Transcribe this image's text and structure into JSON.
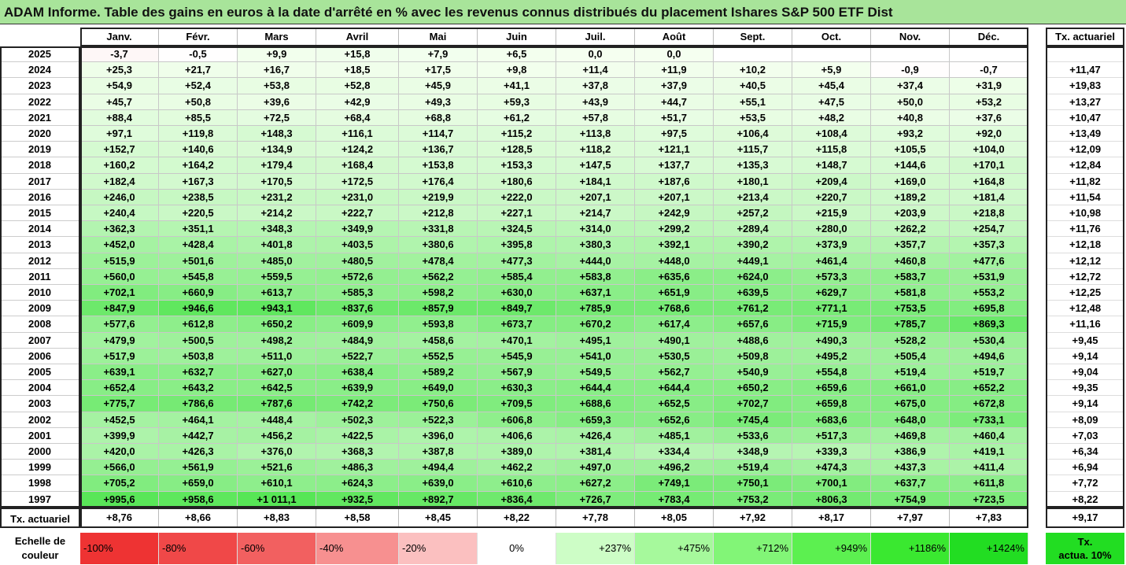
{
  "title": "ADAM Informe. Table des gains en euros à la date d'arrêté en % avec les revenus connus distribués du placement Ishares S&P 500 ETF Dist",
  "months": [
    "Janv.",
    "Févr.",
    "Mars",
    "Avril",
    "Mai",
    "Juin",
    "Juil.",
    "Août",
    "Sept.",
    "Oct.",
    "Nov.",
    "Déc."
  ],
  "tx_header": "Tx. actuariel",
  "rows": [
    {
      "year": "2025",
      "vals": [
        "-3,7",
        "-0,5",
        "+9,9",
        "+15,8",
        "+7,9",
        "+6,5",
        "0,0",
        "0,0",
        "",
        "",
        "",
        ""
      ],
      "tx": ""
    },
    {
      "year": "2024",
      "vals": [
        "+25,3",
        "+21,7",
        "+16,7",
        "+18,5",
        "+17,5",
        "+9,8",
        "+11,4",
        "+11,9",
        "+10,2",
        "+5,9",
        "-0,9",
        "-0,7"
      ],
      "tx": "+11,47"
    },
    {
      "year": "2023",
      "vals": [
        "+54,9",
        "+52,4",
        "+53,8",
        "+52,8",
        "+45,9",
        "+41,1",
        "+37,8",
        "+37,9",
        "+40,5",
        "+45,4",
        "+37,4",
        "+31,9"
      ],
      "tx": "+19,83"
    },
    {
      "year": "2022",
      "vals": [
        "+45,7",
        "+50,8",
        "+39,6",
        "+42,9",
        "+49,3",
        "+59,3",
        "+43,9",
        "+44,7",
        "+55,1",
        "+47,5",
        "+50,0",
        "+53,2"
      ],
      "tx": "+13,27"
    },
    {
      "year": "2021",
      "vals": [
        "+88,4",
        "+85,5",
        "+72,5",
        "+68,4",
        "+68,8",
        "+61,2",
        "+57,8",
        "+51,7",
        "+53,5",
        "+48,2",
        "+40,8",
        "+37,6"
      ],
      "tx": "+10,47"
    },
    {
      "year": "2020",
      "vals": [
        "+97,1",
        "+119,8",
        "+148,3",
        "+116,1",
        "+114,7",
        "+115,2",
        "+113,8",
        "+97,5",
        "+106,4",
        "+108,4",
        "+93,2",
        "+92,0"
      ],
      "tx": "+13,49"
    },
    {
      "year": "2019",
      "vals": [
        "+152,7",
        "+140,6",
        "+134,9",
        "+124,2",
        "+136,7",
        "+128,5",
        "+118,2",
        "+121,1",
        "+115,7",
        "+115,8",
        "+105,5",
        "+104,0"
      ],
      "tx": "+12,09"
    },
    {
      "year": "2018",
      "vals": [
        "+160,2",
        "+164,2",
        "+179,4",
        "+168,4",
        "+153,8",
        "+153,3",
        "+147,5",
        "+137,7",
        "+135,3",
        "+148,7",
        "+144,6",
        "+170,1"
      ],
      "tx": "+12,84"
    },
    {
      "year": "2017",
      "vals": [
        "+182,4",
        "+167,3",
        "+170,5",
        "+172,5",
        "+176,4",
        "+180,6",
        "+184,1",
        "+187,6",
        "+180,1",
        "+209,4",
        "+169,0",
        "+164,8"
      ],
      "tx": "+11,82"
    },
    {
      "year": "2016",
      "vals": [
        "+246,0",
        "+238,5",
        "+231,2",
        "+231,0",
        "+219,9",
        "+222,0",
        "+207,1",
        "+207,1",
        "+213,4",
        "+220,7",
        "+189,2",
        "+181,4"
      ],
      "tx": "+11,54"
    },
    {
      "year": "2015",
      "vals": [
        "+240,4",
        "+220,5",
        "+214,2",
        "+222,7",
        "+212,8",
        "+227,1",
        "+214,7",
        "+242,9",
        "+257,2",
        "+215,9",
        "+203,9",
        "+218,8"
      ],
      "tx": "+10,98"
    },
    {
      "year": "2014",
      "vals": [
        "+362,3",
        "+351,1",
        "+348,3",
        "+349,9",
        "+331,8",
        "+324,5",
        "+314,0",
        "+299,2",
        "+289,4",
        "+280,0",
        "+262,2",
        "+254,7"
      ],
      "tx": "+11,76"
    },
    {
      "year": "2013",
      "vals": [
        "+452,0",
        "+428,4",
        "+401,8",
        "+403,5",
        "+380,6",
        "+395,8",
        "+380,3",
        "+392,1",
        "+390,2",
        "+373,9",
        "+357,7",
        "+357,3"
      ],
      "tx": "+12,18"
    },
    {
      "year": "2012",
      "vals": [
        "+515,9",
        "+501,6",
        "+485,0",
        "+480,5",
        "+478,4",
        "+477,3",
        "+444,0",
        "+448,0",
        "+449,1",
        "+461,4",
        "+460,8",
        "+477,6"
      ],
      "tx": "+12,12"
    },
    {
      "year": "2011",
      "vals": [
        "+560,0",
        "+545,8",
        "+559,5",
        "+572,6",
        "+562,2",
        "+585,4",
        "+583,8",
        "+635,6",
        "+624,0",
        "+573,3",
        "+583,7",
        "+531,9"
      ],
      "tx": "+12,72"
    },
    {
      "year": "2010",
      "vals": [
        "+702,1",
        "+660,9",
        "+613,7",
        "+585,3",
        "+598,2",
        "+630,0",
        "+637,1",
        "+651,9",
        "+639,5",
        "+629,7",
        "+581,8",
        "+553,2"
      ],
      "tx": "+12,25"
    },
    {
      "year": "2009",
      "vals": [
        "+847,9",
        "+946,6",
        "+943,1",
        "+837,6",
        "+857,9",
        "+849,7",
        "+785,9",
        "+768,6",
        "+761,2",
        "+771,1",
        "+753,5",
        "+695,8"
      ],
      "tx": "+12,48"
    },
    {
      "year": "2008",
      "vals": [
        "+577,6",
        "+612,8",
        "+650,2",
        "+609,9",
        "+593,8",
        "+673,7",
        "+670,2",
        "+617,4",
        "+657,6",
        "+715,9",
        "+785,7",
        "+869,3"
      ],
      "tx": "+11,16"
    },
    {
      "year": "2007",
      "vals": [
        "+479,9",
        "+500,5",
        "+498,2",
        "+484,9",
        "+458,6",
        "+470,1",
        "+495,1",
        "+490,1",
        "+488,6",
        "+490,3",
        "+528,2",
        "+530,4"
      ],
      "tx": "+9,45"
    },
    {
      "year": "2006",
      "vals": [
        "+517,9",
        "+503,8",
        "+511,0",
        "+522,7",
        "+552,5",
        "+545,9",
        "+541,0",
        "+530,5",
        "+509,8",
        "+495,2",
        "+505,4",
        "+494,6"
      ],
      "tx": "+9,14"
    },
    {
      "year": "2005",
      "vals": [
        "+639,1",
        "+632,7",
        "+627,0",
        "+638,4",
        "+589,2",
        "+567,9",
        "+549,5",
        "+562,7",
        "+540,9",
        "+554,8",
        "+519,4",
        "+519,7"
      ],
      "tx": "+9,04"
    },
    {
      "year": "2004",
      "vals": [
        "+652,4",
        "+643,2",
        "+642,5",
        "+639,9",
        "+649,0",
        "+630,3",
        "+644,4",
        "+644,4",
        "+650,2",
        "+659,6",
        "+661,0",
        "+652,2"
      ],
      "tx": "+9,35"
    },
    {
      "year": "2003",
      "vals": [
        "+775,7",
        "+786,6",
        "+787,6",
        "+742,2",
        "+750,6",
        "+709,5",
        "+688,6",
        "+652,5",
        "+702,7",
        "+659,8",
        "+675,0",
        "+672,8"
      ],
      "tx": "+9,14"
    },
    {
      "year": "2002",
      "vals": [
        "+452,5",
        "+464,1",
        "+448,4",
        "+502,3",
        "+522,3",
        "+606,8",
        "+659,3",
        "+652,6",
        "+745,4",
        "+683,6",
        "+648,0",
        "+733,1"
      ],
      "tx": "+8,09"
    },
    {
      "year": "2001",
      "vals": [
        "+399,9",
        "+442,7",
        "+456,2",
        "+422,5",
        "+396,0",
        "+406,6",
        "+426,4",
        "+485,1",
        "+533,6",
        "+517,3",
        "+469,8",
        "+460,4"
      ],
      "tx": "+7,03"
    },
    {
      "year": "2000",
      "vals": [
        "+420,0",
        "+426,3",
        "+376,0",
        "+368,3",
        "+387,8",
        "+389,0",
        "+381,4",
        "+334,4",
        "+348,9",
        "+339,3",
        "+386,9",
        "+419,1"
      ],
      "tx": "+6,34"
    },
    {
      "year": "1999",
      "vals": [
        "+566,0",
        "+561,9",
        "+521,6",
        "+486,3",
        "+494,4",
        "+462,2",
        "+497,0",
        "+496,2",
        "+519,4",
        "+474,3",
        "+437,3",
        "+411,4"
      ],
      "tx": "+6,94"
    },
    {
      "year": "1998",
      "vals": [
        "+705,2",
        "+659,0",
        "+610,1",
        "+624,3",
        "+639,0",
        "+610,6",
        "+627,2",
        "+749,1",
        "+750,1",
        "+700,1",
        "+637,7",
        "+611,8"
      ],
      "tx": "+7,72"
    },
    {
      "year": "1997",
      "vals": [
        "+995,6",
        "+958,6",
        "+1 011,1",
        "+932,5",
        "+892,7",
        "+836,4",
        "+726,7",
        "+783,4",
        "+753,2",
        "+806,3",
        "+754,9",
        "+723,5"
      ],
      "tx": "+8,22"
    }
  ],
  "tx_row": {
    "label": "Tx. actuariel",
    "vals": [
      "+8,76",
      "+8,66",
      "+8,83",
      "+8,58",
      "+8,45",
      "+8,22",
      "+7,78",
      "+8,05",
      "+7,92",
      "+8,17",
      "+7,97",
      "+7,83"
    ],
    "total": "+9,17"
  },
  "scale": {
    "label_line1": "Echelle de",
    "label_line2": "couleur",
    "items": [
      {
        "text": "-100%",
        "color": "#ee3333",
        "align": "left"
      },
      {
        "text": "-80%",
        "color": "#f04848",
        "align": "left"
      },
      {
        "text": "-60%",
        "color": "#f26060",
        "align": "left"
      },
      {
        "text": "-40%",
        "color": "#f79090",
        "align": "left"
      },
      {
        "text": "-20%",
        "color": "#fbc0c0",
        "align": "left"
      },
      {
        "text": "0%",
        "color": "#ffffff",
        "align": "center"
      },
      {
        "text": "+237%",
        "color": "#cdfdc6",
        "align": "right"
      },
      {
        "text": "+475%",
        "color": "#a6f99c",
        "align": "right"
      },
      {
        "text": "+712%",
        "color": "#82f577",
        "align": "right"
      },
      {
        "text": "+949%",
        "color": "#5cf050",
        "align": "right"
      },
      {
        "text": "+1186%",
        "color": "#3ae830",
        "align": "right"
      },
      {
        "text": "+1424%",
        "color": "#22dd22",
        "align": "right"
      }
    ],
    "tx_line1": "Tx.",
    "tx_line2": "actua. 10%"
  }
}
